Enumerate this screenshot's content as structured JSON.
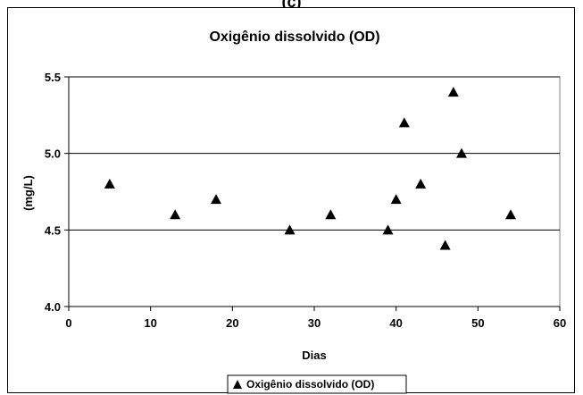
{
  "header": {
    "label": "(c)"
  },
  "chart_data": {
    "type": "scatter",
    "title": "Oxigênio dissolvido (OD)",
    "xlabel": "Dias",
    "ylabel": "(mg/L)",
    "xlim": [
      0,
      60
    ],
    "ylim": [
      4.0,
      5.5
    ],
    "x_ticks": [
      0,
      10,
      20,
      30,
      40,
      50,
      60
    ],
    "y_ticks": [
      "4.0",
      "4.5",
      "5.0",
      "5.5"
    ],
    "grid": "horizontal",
    "legend_position": "bottom",
    "marker": "triangle",
    "color": "#000000",
    "series": [
      {
        "name": "Oxigênio dissolvido (OD)",
        "x": [
          5,
          13,
          18,
          27,
          32,
          39,
          40,
          41,
          43,
          46,
          47,
          48,
          54
        ],
        "y": [
          4.8,
          4.6,
          4.7,
          4.5,
          4.6,
          4.5,
          4.7,
          5.2,
          4.8,
          4.4,
          5.4,
          5.0,
          4.6
        ]
      }
    ]
  }
}
